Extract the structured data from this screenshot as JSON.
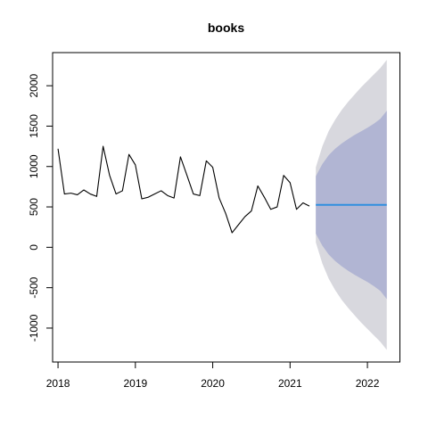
{
  "chart_data": {
    "type": "line",
    "title": "books",
    "xlabel": "",
    "ylabel": "",
    "xlim": [
      2017.93,
      2022.42
    ],
    "ylim": [
      -1420,
      2410
    ],
    "x_ticks": [
      2018,
      2019,
      2020,
      2021,
      2022
    ],
    "x_tick_labels": [
      "2018",
      "2019",
      "2020",
      "2021",
      "2022"
    ],
    "y_ticks": [
      -1000,
      -500,
      0,
      500,
      1000,
      1500,
      2000
    ],
    "y_tick_labels": [
      "-1000",
      "-500",
      "0",
      "500",
      "1000",
      "1500",
      "2000"
    ],
    "grid": false,
    "series": [
      {
        "x": [
          2018.0,
          2018.083,
          2018.167,
          2018.25,
          2018.333,
          2018.417,
          2018.5,
          2018.583,
          2018.667,
          2018.75,
          2018.833,
          2018.917,
          2019.0,
          2019.083,
          2019.167,
          2019.25,
          2019.333,
          2019.417,
          2019.5,
          2019.583,
          2019.667,
          2019.75,
          2019.833,
          2019.917,
          2020.0,
          2020.083,
          2020.167,
          2020.25,
          2020.333,
          2020.417,
          2020.5,
          2020.583,
          2020.667,
          2020.75,
          2020.833,
          2020.917,
          2021.0,
          2021.083,
          2021.167,
          2021.25
        ],
        "values": [
          1220,
          660,
          670,
          650,
          710,
          660,
          630,
          1250,
          890,
          660,
          700,
          1150,
          1020,
          600,
          620,
          660,
          700,
          640,
          610,
          1120,
          890,
          660,
          640,
          1070,
          990,
          610,
          420,
          180,
          280,
          380,
          450,
          760,
          620,
          470,
          500,
          890,
          800,
          470,
          550,
          510
        ],
        "color": "#000000"
      }
    ],
    "forecast": {
      "x": [
        2021.333,
        2021.417,
        2021.5,
        2021.583,
        2021.667,
        2021.75,
        2021.833,
        2021.917,
        2022.0,
        2022.083,
        2022.167,
        2022.25
      ],
      "mean": [
        525,
        525,
        525,
        525,
        525,
        525,
        525,
        525,
        525,
        525,
        525,
        525
      ],
      "lo80": [
        170,
        20,
        -90,
        -170,
        -235,
        -290,
        -340,
        -385,
        -430,
        -480,
        -540,
        -640
      ],
      "hi80": [
        880,
        1030,
        1140,
        1220,
        1285,
        1340,
        1390,
        1435,
        1480,
        1530,
        1590,
        1690
      ],
      "lo95": [
        60,
        -200,
        -390,
        -530,
        -650,
        -750,
        -840,
        -930,
        -1010,
        -1090,
        -1170,
        -1270
      ],
      "hi95": [
        990,
        1250,
        1440,
        1580,
        1700,
        1800,
        1890,
        1980,
        2060,
        2140,
        2220,
        2320
      ],
      "colors": {
        "mean": "#2f8fdf",
        "band80": "#b1b5d3",
        "band95": "#d8d8de"
      }
    }
  }
}
